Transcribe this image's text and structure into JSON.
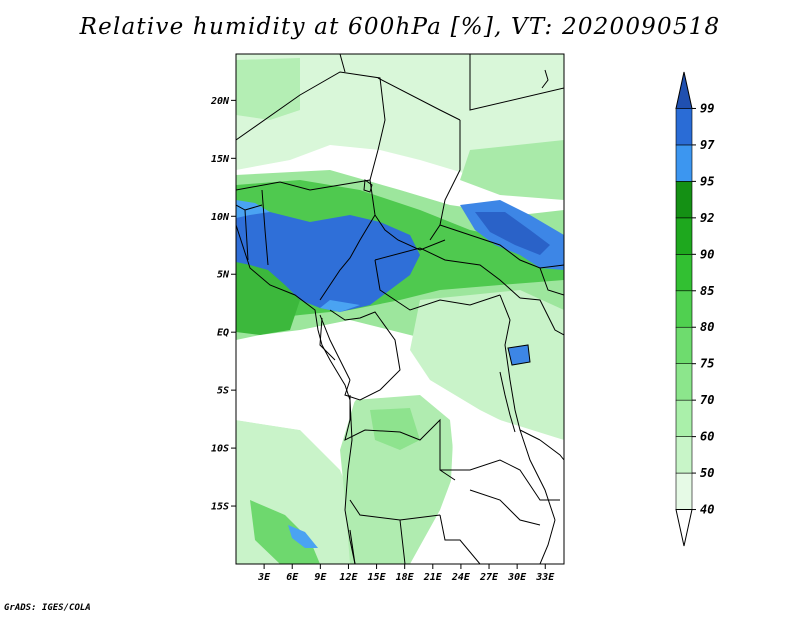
{
  "title": "Relative humidity at 600hPa [%], VT: 2020090518",
  "credit": "GrADS: IGES/COLA",
  "map": {
    "lon_min": 0,
    "lon_max": 35,
    "lat_min": -20,
    "lat_max": 24,
    "lat_ticks": [
      {
        "lat": 20,
        "label": "20N"
      },
      {
        "lat": 15,
        "label": "15N"
      },
      {
        "lat": 10,
        "label": "10N"
      },
      {
        "lat": 5,
        "label": "5N"
      },
      {
        "lat": 0,
        "label": "EQ"
      },
      {
        "lat": -5,
        "label": "5S"
      },
      {
        "lat": -10,
        "label": "10S"
      },
      {
        "lat": -15,
        "label": "15S"
      }
    ],
    "lon_ticks": [
      {
        "lon": 3,
        "label": "3E"
      },
      {
        "lon": 6,
        "label": "6E"
      },
      {
        "lon": 9,
        "label": "9E"
      },
      {
        "lon": 12,
        "label": "12E"
      },
      {
        "lon": 15,
        "label": "15E"
      },
      {
        "lon": 18,
        "label": "18E"
      },
      {
        "lon": 21,
        "label": "21E"
      },
      {
        "lon": 24,
        "label": "24E"
      },
      {
        "lon": 27,
        "label": "27E"
      },
      {
        "lon": 30,
        "label": "30E"
      },
      {
        "lon": 33,
        "label": "33E"
      }
    ]
  },
  "colorbar": {
    "levels": [
      "40",
      "50",
      "60",
      "70",
      "75",
      "80",
      "85",
      "90",
      "92",
      "95",
      "97",
      "99"
    ],
    "colors": [
      "#ffffff",
      "#e6fae6",
      "#c8f5c8",
      "#aaf0aa",
      "#8ce68c",
      "#6edc6e",
      "#50d050",
      "#32c032",
      "#1ea81e",
      "#149014",
      "#3c96f0",
      "#2a6cd6",
      "#2050b0"
    ]
  },
  "palette": {
    "land_white": "#ffffff",
    "green_light": "#d9f7d9",
    "green_mid": "#8ee38e",
    "green_dark": "#3fbf3f",
    "blue_light": "#4aa3f2",
    "blue_mid": "#2f6fd8",
    "border": "#000000"
  }
}
